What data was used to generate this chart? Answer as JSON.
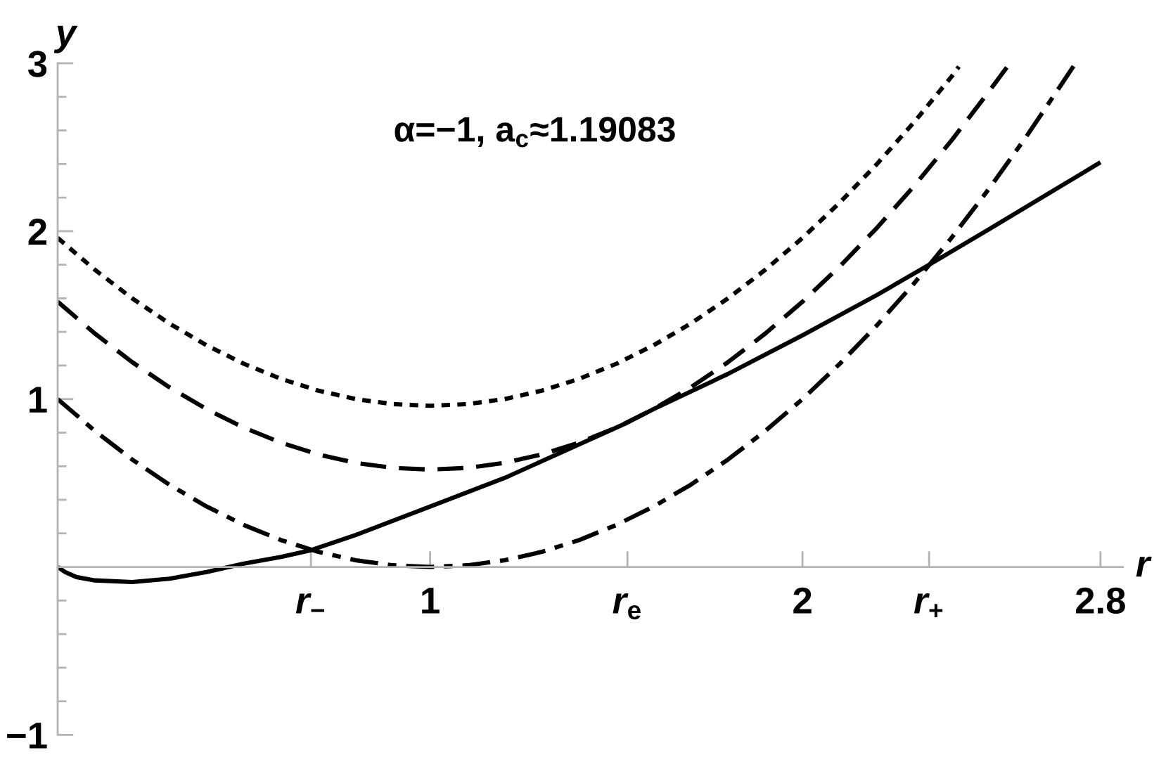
{
  "chart_data": {
    "type": "line",
    "annotations": [
      "α=−1, a$_{c}$≈1.19083"
    ],
    "xlabel": "r",
    "ylabel": "y",
    "xlim": [
      0,
      2.86
    ],
    "ylim": [
      -1,
      3
    ],
    "xticks": [
      {
        "value": 0.68,
        "label": "r$_{−}$"
      },
      1,
      {
        "value": 1.53,
        "label": "r$_{e}$"
      },
      2,
      {
        "value": 2.34,
        "label": "r$_{+}$"
      },
      2.8
    ],
    "yticks": [
      {
        "value": -1,
        "label": "−1"
      },
      {
        "value": -0.8,
        "label": null
      },
      {
        "value": -0.6,
        "label": null
      },
      {
        "value": -0.4,
        "label": null
      },
      {
        "value": -0.2,
        "label": null
      },
      {
        "value": 0.2,
        "label": null
      },
      {
        "value": 0.4,
        "label": null
      },
      {
        "value": 0.6,
        "label": null
      },
      {
        "value": 0.8,
        "label": null
      },
      1,
      {
        "value": 1.2,
        "label": null
      },
      {
        "value": 1.4,
        "label": null
      },
      {
        "value": 1.6,
        "label": null
      },
      {
        "value": 1.8,
        "label": null
      },
      2,
      {
        "value": 2.2,
        "label": null
      },
      {
        "value": 2.4,
        "label": null
      },
      {
        "value": 2.6,
        "label": null
      },
      {
        "value": 2.8,
        "label": null
      },
      3
    ],
    "series": [
      {
        "color": "#000000",
        "line_style": "dotted",
        "x": [
          0,
          0.1,
          0.2,
          0.3,
          0.4,
          0.5,
          0.6,
          0.7,
          0.8,
          0.9,
          1.0,
          1.1,
          1.2,
          1.3,
          1.4,
          1.5,
          1.6,
          1.7,
          1.8,
          1.9,
          2.0,
          2.1,
          2.2,
          2.3,
          2.4,
          2.42
        ],
        "values": [
          1.96,
          1.77,
          1.6,
          1.45,
          1.32,
          1.21,
          1.12,
          1.05,
          1.0,
          0.97,
          0.96,
          0.97,
          1.0,
          1.05,
          1.12,
          1.21,
          1.32,
          1.45,
          1.6,
          1.77,
          1.96,
          2.17,
          2.4,
          2.65,
          2.92,
          2.98
        ]
      },
      {
        "color": "#000000",
        "line_style": "dashed",
        "x": [
          0,
          0.1,
          0.2,
          0.3,
          0.4,
          0.5,
          0.6,
          0.7,
          0.8,
          0.9,
          1.0,
          1.1,
          1.2,
          1.3,
          1.4,
          1.5,
          1.6,
          1.7,
          1.8,
          1.9,
          2.0,
          2.1,
          2.2,
          2.3,
          2.4,
          2.5,
          2.55
        ],
        "values": [
          1.58,
          1.39,
          1.22,
          1.07,
          0.94,
          0.83,
          0.74,
          0.67,
          0.62,
          0.59,
          0.58,
          0.59,
          0.62,
          0.67,
          0.74,
          0.83,
          0.94,
          1.07,
          1.22,
          1.39,
          1.58,
          1.79,
          2.02,
          2.27,
          2.54,
          2.83,
          2.98
        ]
      },
      {
        "color": "#000000",
        "line_style": "dashdot",
        "x": [
          0,
          0.1,
          0.2,
          0.3,
          0.4,
          0.5,
          0.6,
          0.7,
          0.8,
          0.9,
          1.0,
          1.1,
          1.2,
          1.3,
          1.4,
          1.5,
          1.6,
          1.7,
          1.8,
          1.9,
          2.0,
          2.1,
          2.2,
          2.3,
          2.4,
          2.5,
          2.6,
          2.7,
          2.73
        ],
        "values": [
          1.0,
          0.81,
          0.64,
          0.49,
          0.36,
          0.25,
          0.16,
          0.09,
          0.04,
          0.01,
          0.0,
          0.01,
          0.04,
          0.09,
          0.16,
          0.25,
          0.36,
          0.49,
          0.64,
          0.81,
          1.0,
          1.21,
          1.44,
          1.69,
          1.96,
          2.25,
          2.56,
          2.89,
          2.99
        ]
      },
      {
        "color": "#000000",
        "line_style": "solid",
        "x": [
          0,
          0.02,
          0.05,
          0.1,
          0.2,
          0.3,
          0.4,
          0.5,
          0.6,
          0.68,
          0.8,
          1.0,
          1.2,
          1.4,
          1.53,
          1.6,
          1.8,
          2.0,
          2.2,
          2.34,
          2.5,
          2.65,
          2.8
        ],
        "values": [
          0,
          -0.03,
          -0.06,
          -0.08,
          -0.09,
          -0.07,
          -0.03,
          0.02,
          0.06,
          0.1,
          0.19,
          0.36,
          0.53,
          0.73,
          0.86,
          0.94,
          1.15,
          1.38,
          1.62,
          1.8,
          2.01,
          2.21,
          2.41
        ]
      }
    ]
  }
}
